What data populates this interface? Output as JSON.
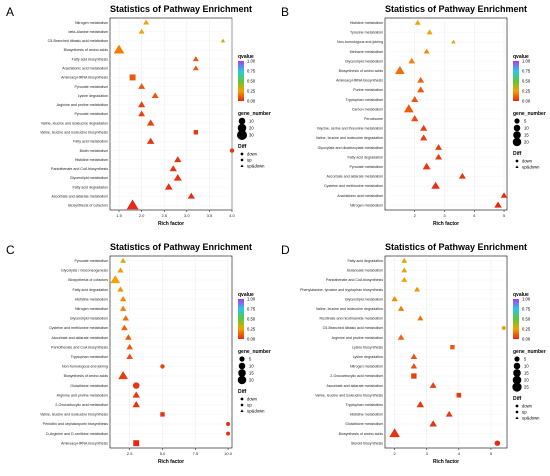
{
  "chart_data": [
    {
      "type": "scatter",
      "panel_label": "A",
      "title": "Statistics of Pathway Enrichment",
      "xlabel": "Rich factor",
      "xlim": [
        1.3,
        4.0
      ],
      "xticks": [
        1.5,
        2.0,
        2.5,
        3.0,
        3.5,
        4.0
      ],
      "xtick_labels": [
        "1.5",
        "2.0",
        "2.5",
        "3.0",
        "3.5",
        "4.0"
      ],
      "legend": {
        "color_title": "qvalue",
        "color_ticks": [
          "1.00",
          "0.75",
          "0.50",
          "0.25",
          "0.00"
        ],
        "size_title": "gene_number",
        "size_levels": [
          10,
          20,
          30
        ],
        "size_labels": [
          "10",
          "20",
          "30"
        ],
        "shape_title": "Diff",
        "shape_labels": [
          "down",
          "up",
          "up&down"
        ]
      },
      "points": [
        {
          "pathway": "Nitrogen metabolism",
          "x": 2.1,
          "genes": 5,
          "qvalue": 0.25,
          "shape": "triangle"
        },
        {
          "pathway": "beta-Alanine metabolism",
          "x": 2.0,
          "genes": 5,
          "qvalue": 0.25,
          "shape": "triangle"
        },
        {
          "pathway": "C5-Branched dibasic acid metabolism",
          "x": 3.8,
          "genes": 2,
          "qvalue": 0.35,
          "shape": "triangle"
        },
        {
          "pathway": "Biosynthesis of amino acids",
          "x": 1.5,
          "genes": 25,
          "qvalue": 0.18,
          "shape": "triangle"
        },
        {
          "pathway": "Fatty acid biosynthesis",
          "x": 3.2,
          "genes": 5,
          "qvalue": 0.1,
          "shape": "triangle"
        },
        {
          "pathway": "Arachidonic acid metabolism",
          "x": 3.2,
          "genes": 5,
          "qvalue": 0.1,
          "shape": "triangle"
        },
        {
          "pathway": "Aminoacyl-tRNA biosynthesis",
          "x": 1.8,
          "genes": 12,
          "qvalue": 0.1,
          "shape": "square"
        },
        {
          "pathway": "Pyruvate metabolism",
          "x": 2.0,
          "genes": 8,
          "qvalue": 0.1,
          "shape": "triangle"
        },
        {
          "pathway": "Lysine degradation",
          "x": 2.3,
          "genes": 8,
          "qvalue": 0.1,
          "shape": "triangle"
        },
        {
          "pathway": "Arginine and proline metabolism",
          "x": 2.0,
          "genes": 9,
          "qvalue": 0.05,
          "shape": "triangle"
        },
        {
          "pathway": "Pyruvate metabolism",
          "x": 2.0,
          "genes": 8,
          "qvalue": 0.05,
          "shape": "triangle"
        },
        {
          "pathway": "Valine, leucine and isoleucine degradation",
          "x": 2.2,
          "genes": 10,
          "qvalue": 0.05,
          "shape": "triangle"
        },
        {
          "pathway": "Valine, leucine and isoleucine biosynthesis",
          "x": 3.2,
          "genes": 5,
          "qvalue": 0.03,
          "shape": "square"
        },
        {
          "pathway": "Fatty acid metabolism",
          "x": 2.2,
          "genes": 10,
          "qvalue": 0.03,
          "shape": "triangle"
        },
        {
          "pathway": "Biotin metabolism",
          "x": 4.0,
          "genes": 3,
          "qvalue": 0.03,
          "shape": "circle"
        },
        {
          "pathway": "Histidine metabolism",
          "x": 2.8,
          "genes": 9,
          "qvalue": 0.02,
          "shape": "triangle"
        },
        {
          "pathway": "Pantothenate and CoA biosynthesis",
          "x": 2.7,
          "genes": 9,
          "qvalue": 0.02,
          "shape": "triangle"
        },
        {
          "pathway": "Glycerolipid metabolism",
          "x": 2.8,
          "genes": 12,
          "qvalue": 0.02,
          "shape": "triangle"
        },
        {
          "pathway": "Fatty acid degradation",
          "x": 2.6,
          "genes": 11,
          "qvalue": 0.01,
          "shape": "triangle"
        },
        {
          "pathway": "Ascorbate and aldarate metabolism",
          "x": 3.1,
          "genes": 9,
          "qvalue": 0.01,
          "shape": "triangle"
        },
        {
          "pathway": "Biosynthesis of cofactors",
          "x": 1.8,
          "genes": 32,
          "qvalue": 0.0,
          "shape": "triangle"
        }
      ]
    },
    {
      "type": "scatter",
      "panel_label": "B",
      "title": "Statistics of Pathway Enrichment",
      "xlabel": "Rich factor",
      "xlim": [
        1.0,
        5.1
      ],
      "xticks": [
        2,
        3,
        4,
        5
      ],
      "xtick_labels": [
        "2",
        "3",
        "4",
        "5"
      ],
      "legend": {
        "color_title": "qvalue",
        "color_ticks": [
          "1.00",
          "0.75",
          "0.50",
          "0.25",
          "0.00"
        ],
        "size_title": "gene_number",
        "size_levels": [
          5,
          10,
          15,
          20
        ],
        "size_labels": [
          "5",
          "10",
          "15",
          "20"
        ],
        "shape_title": "Diff",
        "shape_labels": [
          "down",
          "up&down"
        ]
      },
      "points": [
        {
          "pathway": "Histidine metabolism",
          "x": 2.1,
          "genes": 5,
          "qvalue": 0.25,
          "shape": "triangle"
        },
        {
          "pathway": "Tyrosine metabolism",
          "x": 2.5,
          "genes": 5,
          "qvalue": 0.25,
          "shape": "triangle"
        },
        {
          "pathway": "Non-homologous end-joining",
          "x": 3.3,
          "genes": 2,
          "qvalue": 0.3,
          "shape": "triangle"
        },
        {
          "pathway": "Methane metabolism",
          "x": 2.4,
          "genes": 5,
          "qvalue": 0.2,
          "shape": "triangle"
        },
        {
          "pathway": "Glycerolipid metabolism",
          "x": 1.9,
          "genes": 7,
          "qvalue": 0.18,
          "shape": "triangle"
        },
        {
          "pathway": "Biosynthesis of amino acids",
          "x": 1.5,
          "genes": 20,
          "qvalue": 0.15,
          "shape": "triangle"
        },
        {
          "pathway": "Aminoacyl-tRNA biosynthesis",
          "x": 2.2,
          "genes": 8,
          "qvalue": 0.12,
          "shape": "triangle"
        },
        {
          "pathway": "Purine metabolism",
          "x": 2.2,
          "genes": 9,
          "qvalue": 0.1,
          "shape": "triangle"
        },
        {
          "pathway": "Tryptophan metabolism",
          "x": 2.0,
          "genes": 9,
          "qvalue": 0.1,
          "shape": "triangle"
        },
        {
          "pathway": "Carbon metabolism",
          "x": 1.8,
          "genes": 20,
          "qvalue": 0.1,
          "shape": "triangle"
        },
        {
          "pathway": "Peroxisome",
          "x": 2.0,
          "genes": 10,
          "qvalue": 0.08,
          "shape": "triangle"
        },
        {
          "pathway": "Glycine, serine and threonine metabolism",
          "x": 2.3,
          "genes": 9,
          "qvalue": 0.05,
          "shape": "triangle"
        },
        {
          "pathway": "Valine, leucine and isoleucine degradation",
          "x": 2.3,
          "genes": 9,
          "qvalue": 0.05,
          "shape": "triangle"
        },
        {
          "pathway": "Glyoxylate and dicarboxylate metabolism",
          "x": 2.8,
          "genes": 8,
          "qvalue": 0.04,
          "shape": "triangle"
        },
        {
          "pathway": "Fatty acid degradation",
          "x": 2.8,
          "genes": 8,
          "qvalue": 0.04,
          "shape": "triangle"
        },
        {
          "pathway": "Pyruvate metabolism",
          "x": 2.4,
          "genes": 12,
          "qvalue": 0.03,
          "shape": "triangle"
        },
        {
          "pathway": "Ascorbate and aldarate metabolism",
          "x": 3.6,
          "genes": 8,
          "qvalue": 0.02,
          "shape": "triangle"
        },
        {
          "pathway": "Cysteine and methionine metabolism",
          "x": 2.7,
          "genes": 14,
          "qvalue": 0.01,
          "shape": "triangle"
        },
        {
          "pathway": "Arachidonic acid metabolism",
          "x": 5.0,
          "genes": 7,
          "qvalue": 0.01,
          "shape": "triangle"
        },
        {
          "pathway": "Nitrogen metabolism",
          "x": 4.8,
          "genes": 10,
          "qvalue": 0.0,
          "shape": "triangle"
        }
      ]
    },
    {
      "type": "scatter",
      "panel_label": "C",
      "title": "Statistics of Pathway Enrichment",
      "xlabel": "Rich factor",
      "xlim": [
        1.0,
        10.3
      ],
      "xticks": [
        2.5,
        5.0,
        7.5,
        10.0
      ],
      "xtick_labels": [
        "2.5",
        "5.0",
        "7.5",
        "10.0"
      ],
      "legend": {
        "color_title": "qvalue",
        "color_ticks": [
          "1.00",
          "0.75",
          "0.50",
          "0.25",
          "0.00"
        ],
        "size_title": "gene_number",
        "size_levels": [
          5,
          10,
          15,
          20
        ],
        "size_labels": [
          "5",
          "10",
          "15",
          "20"
        ],
        "shape_title": "Diff",
        "shape_labels": [
          "down",
          "up",
          "up&down"
        ]
      },
      "points": [
        {
          "pathway": "Pyruvate metabolism",
          "x": 2.0,
          "genes": 5,
          "qvalue": 0.3,
          "shape": "triangle"
        },
        {
          "pathway": "Glycolysis / Gluconeogenesis",
          "x": 1.8,
          "genes": 6,
          "qvalue": 0.28,
          "shape": "triangle"
        },
        {
          "pathway": "Biosynthesis of cofactors",
          "x": 1.4,
          "genes": 20,
          "qvalue": 0.25,
          "shape": "triangle"
        },
        {
          "pathway": "Fatty acid degradation",
          "x": 1.8,
          "genes": 6,
          "qvalue": 0.22,
          "shape": "triangle"
        },
        {
          "pathway": "Histidine metabolism",
          "x": 2.0,
          "genes": 6,
          "qvalue": 0.2,
          "shape": "triangle"
        },
        {
          "pathway": "Nitrogen metabolism",
          "x": 2.0,
          "genes": 6,
          "qvalue": 0.18,
          "shape": "triangle"
        },
        {
          "pathway": "Glycerolipid metabolism",
          "x": 2.2,
          "genes": 7,
          "qvalue": 0.15,
          "shape": "triangle"
        },
        {
          "pathway": "Cysteine and methionine metabolism",
          "x": 2.1,
          "genes": 7,
          "qvalue": 0.12,
          "shape": "triangle"
        },
        {
          "pathway": "Ascorbate and aldarate metabolism",
          "x": 2.4,
          "genes": 7,
          "qvalue": 0.1,
          "shape": "triangle"
        },
        {
          "pathway": "Pantothenate and CoA biosynthesis",
          "x": 2.5,
          "genes": 7,
          "qvalue": 0.1,
          "shape": "triangle"
        },
        {
          "pathway": "Tryptophan metabolism",
          "x": 2.5,
          "genes": 7,
          "qvalue": 0.08,
          "shape": "triangle"
        },
        {
          "pathway": "Non-homologous end-joining",
          "x": 5.0,
          "genes": 3,
          "qvalue": 0.05,
          "shape": "circle"
        },
        {
          "pathway": "Biosynthesis of amino acids",
          "x": 2.0,
          "genes": 20,
          "qvalue": 0.04,
          "shape": "triangle"
        },
        {
          "pathway": "Glutathione metabolism",
          "x": 3.0,
          "genes": 10,
          "qvalue": 0.03,
          "shape": "circle"
        },
        {
          "pathway": "Arginine and proline metabolism",
          "x": 3.0,
          "genes": 10,
          "qvalue": 0.03,
          "shape": "triangle"
        },
        {
          "pathway": "2-Oxocarboxylic acid metabolism",
          "x": 3.0,
          "genes": 10,
          "qvalue": 0.02,
          "shape": "triangle"
        },
        {
          "pathway": "Valine, leucine and isoleucine biosynthesis",
          "x": 5.0,
          "genes": 5,
          "qvalue": 0.02,
          "shape": "square"
        },
        {
          "pathway": "Penicillin and cephalosporin biosynthesis",
          "x": 10.0,
          "genes": 2,
          "qvalue": 0.01,
          "shape": "circle"
        },
        {
          "pathway": "D-Arginine and D-ornithine metabolism",
          "x": 10.0,
          "genes": 2,
          "qvalue": 0.01,
          "shape": "circle"
        },
        {
          "pathway": "Aminoacyl-tRNA biosynthesis",
          "x": 3.0,
          "genes": 12,
          "qvalue": 0.0,
          "shape": "square"
        }
      ]
    },
    {
      "type": "scatter",
      "panel_label": "D",
      "title": "Statistics of Pathway Enrichment",
      "xlabel": "Rich factor",
      "xlim": [
        1.7,
        5.5
      ],
      "xticks": [
        2,
        3,
        4,
        5
      ],
      "xtick_labels": [
        "2",
        "3",
        "4",
        "5"
      ],
      "legend": {
        "color_title": "qvalue",
        "color_ticks": [
          "1.00",
          "0.75",
          "0.50",
          "0.25",
          "0.00"
        ],
        "size_title": "gene_number",
        "size_levels": [
          5,
          10,
          15,
          20,
          25
        ],
        "size_labels": [
          "5",
          "10",
          "15",
          "20",
          "25"
        ],
        "shape_title": "Diff",
        "shape_labels": [
          "down",
          "up",
          "up&down"
        ]
      },
      "points": [
        {
          "pathway": "Fatty acid degradation",
          "x": 2.3,
          "genes": 5,
          "qvalue": 0.3,
          "shape": "triangle"
        },
        {
          "pathway": "Butanoate metabolism",
          "x": 2.3,
          "genes": 5,
          "qvalue": 0.28,
          "shape": "triangle"
        },
        {
          "pathway": "Pantothenate and CoA biosynthesis",
          "x": 2.3,
          "genes": 5,
          "qvalue": 0.25,
          "shape": "triangle"
        },
        {
          "pathway": "Phenylalanine, tyrosine and tryptophan biosynthesis",
          "x": 2.7,
          "genes": 5,
          "qvalue": 0.22,
          "shape": "triangle"
        },
        {
          "pathway": "Glycerolipid metabolism",
          "x": 2.0,
          "genes": 6,
          "qvalue": 0.2,
          "shape": "triangle"
        },
        {
          "pathway": "Valine, leucine and isoleucine degradation",
          "x": 2.2,
          "genes": 6,
          "qvalue": 0.18,
          "shape": "triangle"
        },
        {
          "pathway": "Nicotinate and nicotinamide metabolism",
          "x": 2.8,
          "genes": 5,
          "qvalue": 0.15,
          "shape": "triangle"
        },
        {
          "pathway": "C5-Branched dibasic acid metabolism",
          "x": 5.4,
          "genes": 2,
          "qvalue": 0.3,
          "shape": "circle"
        },
        {
          "pathway": "Arginine and proline metabolism",
          "x": 2.2,
          "genes": 7,
          "qvalue": 0.12,
          "shape": "triangle"
        },
        {
          "pathway": "Lysine biosynthesis",
          "x": 3.8,
          "genes": 5,
          "qvalue": 0.1,
          "shape": "square"
        },
        {
          "pathway": "Lysine degradation",
          "x": 2.6,
          "genes": 7,
          "qvalue": 0.1,
          "shape": "triangle"
        },
        {
          "pathway": "Nitrogen metabolism",
          "x": 2.6,
          "genes": 7,
          "qvalue": 0.08,
          "shape": "triangle"
        },
        {
          "pathway": "2-Oxocarboxylic acid metabolism",
          "x": 2.6,
          "genes": 9,
          "qvalue": 0.05,
          "shape": "square"
        },
        {
          "pathway": "Ascorbate and aldarate metabolism",
          "x": 3.2,
          "genes": 8,
          "qvalue": 0.05,
          "shape": "triangle"
        },
        {
          "pathway": "Valine, leucine and isoleucine biosynthesis",
          "x": 4.0,
          "genes": 6,
          "qvalue": 0.04,
          "shape": "square"
        },
        {
          "pathway": "Tryptophan metabolism",
          "x": 2.8,
          "genes": 10,
          "qvalue": 0.03,
          "shape": "triangle"
        },
        {
          "pathway": "Histidine metabolism",
          "x": 3.7,
          "genes": 8,
          "qvalue": 0.03,
          "shape": "triangle"
        },
        {
          "pathway": "Glutathione metabolism",
          "x": 3.2,
          "genes": 10,
          "qvalue": 0.02,
          "shape": "triangle"
        },
        {
          "pathway": "Biosynthesis of amino acids",
          "x": 2.0,
          "genes": 25,
          "qvalue": 0.02,
          "shape": "triangle"
        },
        {
          "pathway": "Steroid biosynthesis",
          "x": 5.2,
          "genes": 6,
          "qvalue": 0.0,
          "shape": "circle"
        }
      ]
    }
  ]
}
